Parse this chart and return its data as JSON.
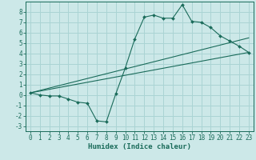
{
  "xlabel": "Humidex (Indice chaleur)",
  "bg_color": "#cce8e8",
  "grid_color": "#aad4d4",
  "line_color": "#1a6b5a",
  "xlim": [
    -0.5,
    23.5
  ],
  "ylim": [
    -3.5,
    9.0
  ],
  "xticks": [
    0,
    1,
    2,
    3,
    4,
    5,
    6,
    7,
    8,
    9,
    10,
    11,
    12,
    13,
    14,
    15,
    16,
    17,
    18,
    19,
    20,
    21,
    22,
    23
  ],
  "yticks": [
    -3,
    -2,
    -1,
    0,
    1,
    2,
    3,
    4,
    5,
    6,
    7,
    8
  ],
  "curve_x": [
    0,
    1,
    2,
    3,
    4,
    5,
    6,
    7,
    8,
    9,
    10,
    11,
    12,
    13,
    14,
    15,
    16,
    17,
    18,
    19,
    20,
    21,
    22,
    23
  ],
  "curve_y": [
    0.2,
    0.0,
    -0.1,
    -0.1,
    -0.4,
    -0.7,
    -0.8,
    -2.5,
    -2.6,
    0.1,
    2.6,
    5.4,
    7.5,
    7.7,
    7.4,
    7.4,
    8.7,
    7.1,
    7.0,
    6.5,
    5.7,
    5.2,
    4.7,
    4.1
  ],
  "line1_x": [
    0,
    23
  ],
  "line1_y": [
    0.2,
    4.1
  ],
  "line2_x": [
    0,
    23
  ],
  "line2_y": [
    0.2,
    5.5
  ],
  "tick_fontsize": 5.5,
  "xlabel_fontsize": 6.5
}
